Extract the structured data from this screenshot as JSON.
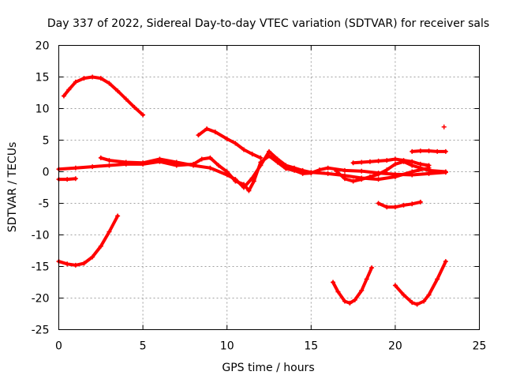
{
  "chart_data": {
    "type": "scatter",
    "title": "Day 337 of 2022, Sidereal Day-to-day VTEC variation (SDTVAR) for receiver sals",
    "xlabel": "GPS time / hours",
    "ylabel": "SDTVAR / TECUs",
    "xlim": [
      0,
      25
    ],
    "ylim": [
      -25,
      20
    ],
    "xticks": [
      "0",
      "5",
      "10",
      "15",
      "20",
      "25"
    ],
    "yticks": [
      "20",
      "15",
      "10",
      "5",
      "0",
      "-5",
      "-10",
      "-15",
      "-20",
      "-25"
    ],
    "grid": true,
    "marker": "plus",
    "color": "#ff0000",
    "series": [
      {
        "name": "arc-early-high",
        "points": [
          [
            0.3,
            12
          ],
          [
            0.6,
            13
          ],
          [
            1.0,
            14.2
          ],
          [
            1.5,
            14.8
          ],
          [
            2.0,
            15
          ],
          [
            2.5,
            14.8
          ],
          [
            3.0,
            14
          ],
          [
            3.5,
            12.8
          ],
          [
            4.0,
            11.5
          ],
          [
            4.5,
            10.2
          ],
          [
            5.0,
            9
          ]
        ]
      },
      {
        "name": "arc-early-low",
        "points": [
          [
            0,
            -14.2
          ],
          [
            0.5,
            -14.6
          ],
          [
            1.0,
            -14.8
          ],
          [
            1.5,
            -14.5
          ],
          [
            2.0,
            -13.5
          ],
          [
            2.5,
            -11.8
          ],
          [
            3.0,
            -9.5
          ],
          [
            3.5,
            -7
          ]
        ]
      },
      {
        "name": "band-main-1",
        "points": [
          [
            0,
            0.4
          ],
          [
            1,
            0.6
          ],
          [
            2,
            0.8
          ],
          [
            3,
            1.0
          ],
          [
            4,
            1.2
          ],
          [
            5,
            1.2
          ],
          [
            6,
            1.6
          ],
          [
            7,
            1.0
          ],
          [
            8,
            1.2
          ],
          [
            8.5,
            2.0
          ],
          [
            9,
            2.2
          ],
          [
            9.5,
            1.0
          ],
          [
            10,
            0
          ],
          [
            10.5,
            -1.5
          ],
          [
            11,
            -2
          ],
          [
            11.3,
            -3
          ],
          [
            11.6,
            -1.5
          ],
          [
            12,
            1.5
          ],
          [
            12.5,
            2.5
          ],
          [
            13,
            1.5
          ],
          [
            13.5,
            0.5
          ],
          [
            14,
            0.2
          ],
          [
            14.5,
            -0.3
          ],
          [
            15,
            -0.2
          ],
          [
            15.5,
            0.3
          ],
          [
            16,
            0.6
          ],
          [
            17,
            0.2
          ],
          [
            18,
            0.1
          ],
          [
            19,
            -0.2
          ],
          [
            20,
            -0.4
          ],
          [
            21,
            -0.5
          ],
          [
            22,
            -0.3
          ],
          [
            23,
            -0.1
          ]
        ]
      },
      {
        "name": "band-main-2",
        "points": [
          [
            2.5,
            2.2
          ],
          [
            3,
            1.8
          ],
          [
            4,
            1.5
          ],
          [
            5,
            1.4
          ],
          [
            6,
            2.0
          ],
          [
            7,
            1.5
          ],
          [
            8,
            1.0
          ],
          [
            9,
            0.6
          ],
          [
            10,
            -0.5
          ],
          [
            10.5,
            -1.2
          ],
          [
            11,
            -2.5
          ],
          [
            11.5,
            -1
          ],
          [
            12,
            1
          ],
          [
            12.5,
            3.2
          ],
          [
            13,
            2
          ],
          [
            13.5,
            1
          ],
          [
            14,
            0.6
          ],
          [
            14.5,
            0.2
          ],
          [
            15,
            -0.1
          ],
          [
            16,
            -0.3
          ],
          [
            17,
            -0.6
          ],
          [
            18,
            -1.0
          ],
          [
            19,
            -1.2
          ],
          [
            20,
            -0.8
          ],
          [
            21,
            0
          ],
          [
            22,
            0.6
          ]
        ]
      },
      {
        "name": "band-mid-high",
        "points": [
          [
            8.3,
            5.8
          ],
          [
            8.8,
            6.8
          ],
          [
            9.3,
            6.3
          ],
          [
            10,
            5.2
          ],
          [
            10.5,
            4.5
          ],
          [
            11,
            3.5
          ],
          [
            11.5,
            2.8
          ],
          [
            12,
            2.2
          ]
        ]
      },
      {
        "name": "band-late",
        "points": [
          [
            16.5,
            0.1
          ],
          [
            17,
            -1.1
          ],
          [
            17.5,
            -1.5
          ],
          [
            18,
            -1.2
          ],
          [
            18.5,
            -0.8
          ],
          [
            19,
            -0.4
          ],
          [
            19.5,
            0.3
          ],
          [
            20,
            1.2
          ],
          [
            20.5,
            1.6
          ],
          [
            21,
            1.0
          ],
          [
            21.5,
            0.6
          ],
          [
            22,
            0.2
          ],
          [
            23,
            0
          ]
        ]
      },
      {
        "name": "band-late-upper",
        "points": [
          [
            17.5,
            1.4
          ],
          [
            18,
            1.5
          ],
          [
            18.5,
            1.6
          ],
          [
            19,
            1.7
          ],
          [
            19.5,
            1.8
          ],
          [
            20,
            2.0
          ],
          [
            20.5,
            1.8
          ],
          [
            21,
            1.6
          ],
          [
            21.5,
            1.2
          ],
          [
            22,
            1.0
          ]
        ]
      },
      {
        "name": "segment-right-top",
        "points": [
          [
            21,
            3.2
          ],
          [
            21.5,
            3.3
          ],
          [
            22,
            3.3
          ],
          [
            22.5,
            3.2
          ],
          [
            23,
            3.2
          ]
        ]
      },
      {
        "name": "segment-right-mid",
        "points": [
          [
            19,
            -5
          ],
          [
            19.5,
            -5.6
          ],
          [
            20,
            -5.6
          ],
          [
            20.5,
            -5.3
          ],
          [
            21,
            -5.1
          ],
          [
            21.5,
            -4.8
          ]
        ]
      },
      {
        "name": "segment-left-low",
        "points": [
          [
            0,
            -1.2
          ],
          [
            0.5,
            -1.2
          ],
          [
            1,
            -1.1
          ]
        ]
      },
      {
        "name": "arc-late-1",
        "points": [
          [
            16.3,
            -17.5
          ],
          [
            16.6,
            -19
          ],
          [
            17,
            -20.5
          ],
          [
            17.3,
            -20.8
          ],
          [
            17.6,
            -20.3
          ],
          [
            18,
            -18.8
          ],
          [
            18.3,
            -17
          ],
          [
            18.6,
            -15.2
          ]
        ]
      },
      {
        "name": "arc-late-2",
        "points": [
          [
            20,
            -18
          ],
          [
            20.5,
            -19.5
          ],
          [
            21,
            -20.7
          ],
          [
            21.3,
            -21
          ],
          [
            21.7,
            -20.5
          ],
          [
            22,
            -19.5
          ],
          [
            22.5,
            -17
          ],
          [
            23,
            -14.2
          ]
        ]
      },
      {
        "name": "outlier",
        "points": [
          [
            22.9,
            7.1
          ]
        ]
      }
    ]
  }
}
